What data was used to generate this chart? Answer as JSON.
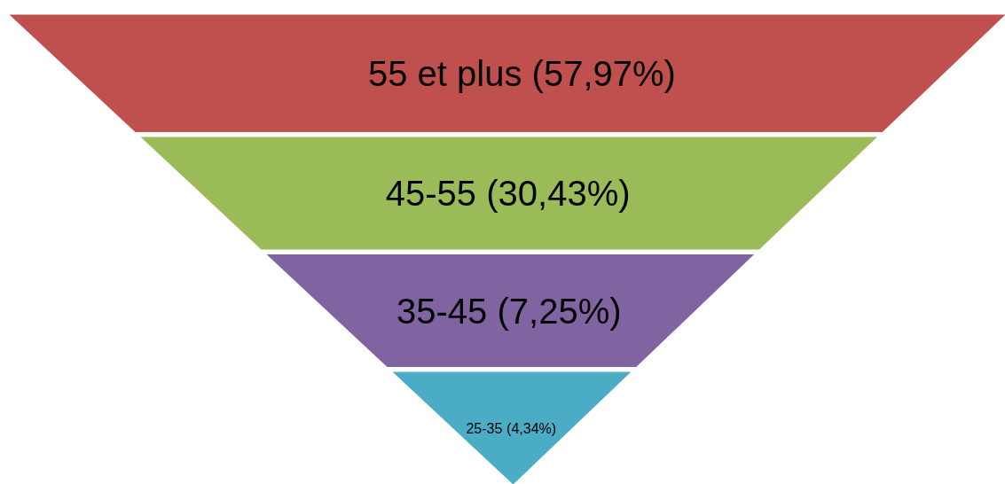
{
  "chart_data": {
    "type": "other",
    "categories": [
      "55 et plus",
      "45-55",
      "35-45",
      "25-35"
    ],
    "values": [
      57.97,
      30.43,
      7.25,
      4.34
    ],
    "value_labels": [
      "(57,97%)",
      "(30,43%)",
      "(7,25%)",
      "(4,34%)"
    ],
    "colors": [
      "#c0504d",
      "#9bbb59",
      "#8064a2",
      "#4bacc6"
    ]
  }
}
